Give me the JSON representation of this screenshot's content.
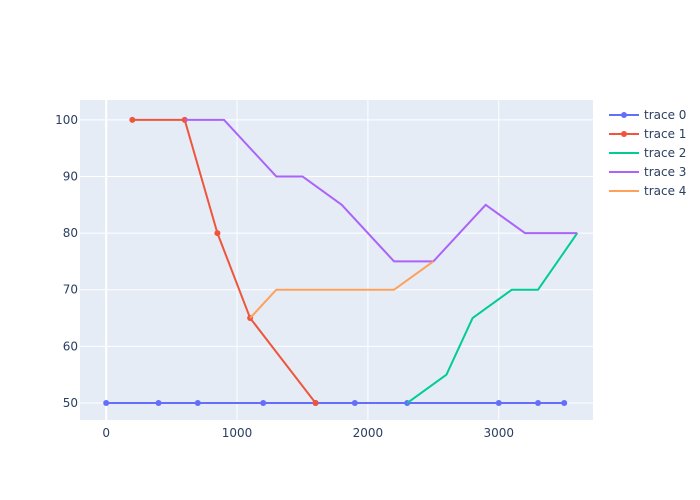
{
  "chart_data": {
    "type": "line",
    "title": "",
    "xlabel": "",
    "ylabel": "",
    "xlim": [
      -200,
      3720
    ],
    "ylim": [
      47,
      103.5
    ],
    "x_ticks": [
      0,
      1000,
      2000,
      3000
    ],
    "y_ticks": [
      50,
      60,
      70,
      80,
      90,
      100
    ],
    "x_tick_labels": [
      "0",
      "1000",
      "2000",
      "3000"
    ],
    "y_tick_labels": [
      "50",
      "60",
      "70",
      "80",
      "90",
      "100"
    ],
    "grid": true,
    "legend_position": "right",
    "plot_background": "#e5ecf6",
    "series": [
      {
        "name": "trace 0",
        "color": "#636efa",
        "markers": true,
        "x": [
          0,
          400,
          700,
          1200,
          1600,
          1900,
          2300,
          3000,
          3300,
          3500
        ],
        "y": [
          50,
          50,
          50,
          50,
          50,
          50,
          50,
          50,
          50,
          50
        ]
      },
      {
        "name": "trace 1",
        "color": "#ef553b",
        "markers": true,
        "x": [
          200,
          600,
          850,
          1100,
          1600
        ],
        "y": [
          100,
          100,
          80,
          65,
          50
        ]
      },
      {
        "name": "trace 2",
        "color": "#00cc96",
        "markers": false,
        "x": [
          2300,
          2600,
          2800,
          3100,
          3300,
          3600
        ],
        "y": [
          50,
          55,
          65,
          70,
          70,
          80
        ]
      },
      {
        "name": "trace 3",
        "color": "#ab63fa",
        "markers": false,
        "x": [
          600,
          900,
          1300,
          1500,
          1800,
          2200,
          2500,
          2900,
          3200,
          3600
        ],
        "y": [
          100,
          100,
          90,
          90,
          85,
          75,
          75,
          85,
          80,
          80
        ]
      },
      {
        "name": "trace 4",
        "color": "#ffa15a",
        "markers": false,
        "x": [
          1100,
          1300,
          2200,
          2500
        ],
        "y": [
          65,
          70,
          70,
          75
        ]
      }
    ]
  }
}
